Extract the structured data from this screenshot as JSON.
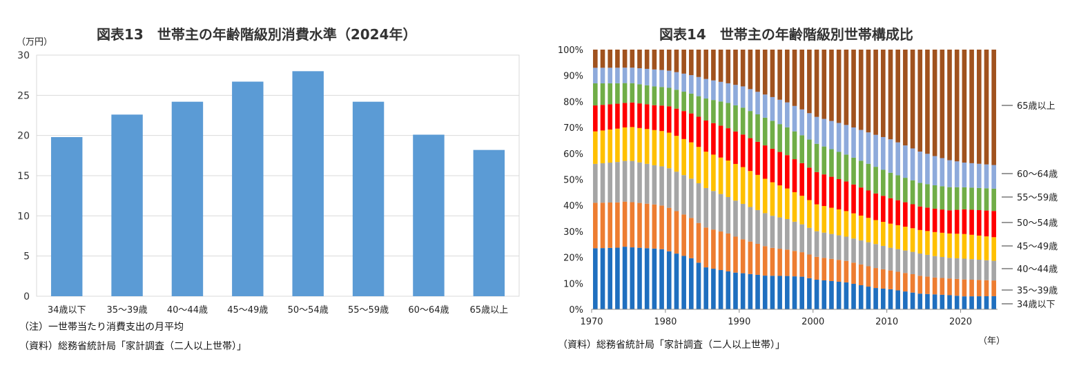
{
  "left": {
    "title": "図表13　世帯主の年齢階級別消費水準（2024年）",
    "unit": "（万円）",
    "note1": "（注）一世帯当たり消費支出の月平均",
    "note2": "（資料）総務省統計局「家計調査（二人以上世帯）」"
  },
  "right": {
    "title": "図表14　世帯主の年齢階級別世帯構成比",
    "source": "（資料）総務省統計局「家計調査（二人以上世帯）」",
    "year_unit": "（年）"
  },
  "chart_data": [
    {
      "type": "bar",
      "title": "図表13　世帯主の年齢階級別消費水準（2024年）",
      "ylabel": "（万円）",
      "ylim": [
        0,
        30
      ],
      "yticks": [
        0,
        5,
        10,
        15,
        20,
        25,
        30
      ],
      "grid": true,
      "color": "#5b9bd5",
      "categories": [
        "34歳以下",
        "35～39歳",
        "40～44歳",
        "45～49歳",
        "50～54歳",
        "55～59歳",
        "60～64歳",
        "65歳以上"
      ],
      "values": [
        19.8,
        22.6,
        24.2,
        26.7,
        28.0,
        24.2,
        20.1,
        18.2
      ]
    },
    {
      "type": "bar",
      "stacked": true,
      "title": "図表14　世帯主の年齢階級別世帯構成比",
      "xlabel": "（年）",
      "ylim": [
        0,
        100
      ],
      "yticks": [
        0,
        10,
        20,
        30,
        40,
        50,
        60,
        70,
        80,
        90,
        100
      ],
      "ytick_suffix": "%",
      "xticks": [
        1970,
        1980,
        1990,
        2000,
        2010,
        2020
      ],
      "x_range": [
        1970,
        2024
      ],
      "legend_position": "right",
      "series": [
        {
          "name": "34歳以下",
          "color": "#1f6fbf",
          "anchors": [
            [
              1970,
              23.5
            ],
            [
              1973,
              23.8
            ],
            [
              1974,
              24.3
            ],
            [
              1975,
              24
            ],
            [
              1979,
              23
            ],
            [
              1981,
              21
            ],
            [
              1983,
              19
            ],
            [
              1984,
              17
            ],
            [
              1985,
              15
            ],
            [
              1987,
              14
            ],
            [
              1989,
              13
            ],
            [
              1993,
              12
            ],
            [
              1996,
              12
            ],
            [
              1998,
              12
            ],
            [
              2000,
              11
            ],
            [
              2004,
              10
            ],
            [
              2008,
              8
            ],
            [
              2010,
              7.5
            ],
            [
              2014,
              6
            ],
            [
              2018,
              5.5
            ],
            [
              2020,
              5
            ],
            [
              2024,
              5
            ]
          ]
        },
        {
          "name": "35～39歳",
          "color": "#ed7d31",
          "anchors": [
            [
              1970,
              17.5
            ],
            [
              1975,
              17.5
            ],
            [
              1980,
              16.5
            ],
            [
              1984,
              14.5
            ],
            [
              1988,
              13.5
            ],
            [
              1990,
              12
            ],
            [
              1994,
              10
            ],
            [
              1996,
              9.5
            ],
            [
              2000,
              8.5
            ],
            [
              2004,
              8
            ],
            [
              2008,
              7.5
            ],
            [
              2010,
              7
            ],
            [
              2013,
              7
            ],
            [
              2016,
              6.5
            ],
            [
              2020,
              6.5
            ],
            [
              2024,
              6
            ]
          ]
        },
        {
          "name": "40～44歳",
          "color": "#a5a5a5",
          "anchors": [
            [
              1970,
              15
            ],
            [
              1975,
              16
            ],
            [
              1978,
              15
            ],
            [
              1980,
              15
            ],
            [
              1984,
              14.5
            ],
            [
              1988,
              13
            ],
            [
              1992,
              12
            ],
            [
              1996,
              11
            ],
            [
              2000,
              9.5
            ],
            [
              2004,
              9
            ],
            [
              2008,
              9
            ],
            [
              2010,
              8.5
            ],
            [
              2014,
              8.5
            ],
            [
              2018,
              8
            ],
            [
              2020,
              8
            ],
            [
              2024,
              7.5
            ]
          ]
        },
        {
          "name": "45～49歳",
          "color": "#ffc000",
          "anchors": [
            [
              1970,
              12.5
            ],
            [
              1974,
              13
            ],
            [
              1978,
              13.5
            ],
            [
              1980,
              13.5
            ],
            [
              1983,
              13.5
            ],
            [
              1985,
              13
            ],
            [
              1988,
              13
            ],
            [
              1990,
              13
            ],
            [
              1994,
              12
            ],
            [
              1996,
              11
            ],
            [
              2000,
              10
            ],
            [
              2004,
              9.5
            ],
            [
              2008,
              9
            ],
            [
              2010,
              9
            ],
            [
              2014,
              9
            ],
            [
              2018,
              9.5
            ],
            [
              2020,
              9.5
            ],
            [
              2024,
              9
            ]
          ]
        },
        {
          "name": "50～54歳",
          "color": "#ff0000",
          "anchors": [
            [
              1970,
              10
            ],
            [
              1974,
              9.5
            ],
            [
              1978,
              9.5
            ],
            [
              1980,
              10
            ],
            [
              1984,
              11
            ],
            [
              1988,
              11.5
            ],
            [
              1990,
              11.5
            ],
            [
              1994,
              12
            ],
            [
              1996,
              12
            ],
            [
              2000,
              12
            ],
            [
              2004,
              11
            ],
            [
              2008,
              10
            ],
            [
              2010,
              9.5
            ],
            [
              2014,
              9
            ],
            [
              2018,
              9
            ],
            [
              2020,
              9.5
            ],
            [
              2024,
              10
            ]
          ]
        },
        {
          "name": "55～59歳",
          "color": "#70ad47",
          "anchors": [
            [
              1970,
              8.5
            ],
            [
              1975,
              7.5
            ],
            [
              1980,
              7
            ],
            [
              1984,
              7.5
            ],
            [
              1988,
              9
            ],
            [
              1990,
              9.5
            ],
            [
              1994,
              10
            ],
            [
              1996,
              10
            ],
            [
              2000,
              10.5
            ],
            [
              2004,
              10
            ],
            [
              2008,
              10
            ],
            [
              2010,
              9.5
            ],
            [
              2014,
              9
            ],
            [
              2018,
              9
            ],
            [
              2020,
              8.5
            ],
            [
              2024,
              8.5
            ]
          ]
        },
        {
          "name": "60～64歳",
          "color": "#8eaadb",
          "anchors": [
            [
              1970,
              6
            ],
            [
              1975,
              6
            ],
            [
              1978,
              6.5
            ],
            [
              1980,
              6.5
            ],
            [
              1984,
              7
            ],
            [
              1988,
              7
            ],
            [
              1990,
              7.5
            ],
            [
              1994,
              8.5
            ],
            [
              1996,
              9
            ],
            [
              2000,
              10
            ],
            [
              2004,
              11
            ],
            [
              2008,
              12
            ],
            [
              2010,
              12.5
            ],
            [
              2014,
              12
            ],
            [
              2018,
              10.5
            ],
            [
              2020,
              9.5
            ],
            [
              2024,
              9
            ]
          ]
        },
        {
          "name": "65歳以上",
          "color": "#a0521e",
          "anchors": [
            [
              1970,
              7
            ],
            [
              1975,
              7
            ],
            [
              1980,
              8
            ],
            [
              1983,
              9.5
            ],
            [
              1985,
              10.5
            ],
            [
              1988,
              12
            ],
            [
              1990,
              13
            ],
            [
              1994,
              17
            ],
            [
              1996,
              19
            ],
            [
              2000,
              25
            ],
            [
              2004,
              28
            ],
            [
              2008,
              32
            ],
            [
              2010,
              33.5
            ],
            [
              2014,
              39
            ],
            [
              2018,
              43
            ],
            [
              2020,
              43.5
            ],
            [
              2024,
              44
            ]
          ]
        }
      ]
    }
  ]
}
